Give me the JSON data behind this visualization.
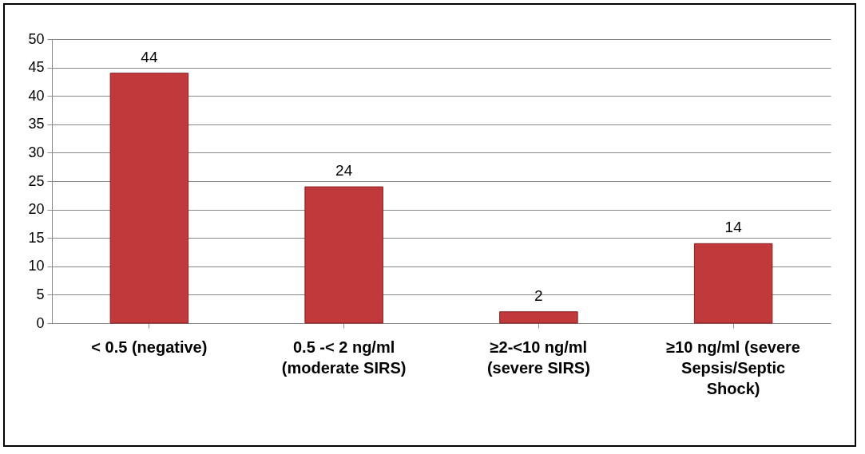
{
  "chart_data": {
    "type": "bar",
    "categories": [
      "< 0.5 (negative)",
      "0.5 -< 2 ng/ml (moderate SIRS)",
      "≥2-<10 ng/ml (severe SIRS)",
      "≥10 ng/ml (severe Sepsis/Septic Shock)"
    ],
    "values": [
      44,
      24,
      2,
      14
    ],
    "color": "#c0393b",
    "ylim": [
      0,
      50
    ],
    "yticks": [
      0,
      5,
      10,
      15,
      20,
      25,
      30,
      35,
      40,
      45,
      50
    ],
    "grid": "y",
    "data_labels": true
  }
}
